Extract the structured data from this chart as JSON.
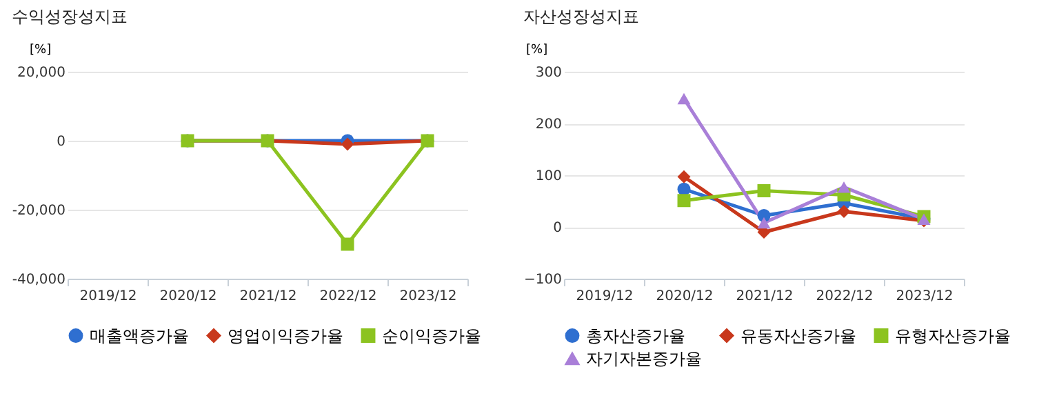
{
  "chart_data": [
    {
      "type": "line",
      "title": "수익성장성지표",
      "ylabel": "[%]",
      "categories": [
        "2019/12",
        "2020/12",
        "2021/12",
        "2022/12",
        "2023/12"
      ],
      "ylim": [
        -40000,
        20000
      ],
      "yticks": [
        {
          "value": -40000,
          "label": "-40,000"
        },
        {
          "value": -20000,
          "label": "-20,000"
        },
        0,
        {
          "value": 20000,
          "label": "20,000"
        }
      ],
      "grid": "y",
      "legend": "bottom",
      "series": [
        {
          "name": "매출액증가율",
          "color": "#2f6fd0",
          "marker": "circle",
          "values": [
            null,
            0,
            0,
            0,
            0
          ]
        },
        {
          "name": "영업이익증가율",
          "color": "#c8381c",
          "marker": "diamond",
          "values": [
            null,
            0,
            0,
            -1000,
            0
          ]
        },
        {
          "name": "순이익증가율",
          "color": "#8cc320",
          "marker": "square",
          "values": [
            null,
            0,
            0,
            -30000,
            0
          ]
        }
      ]
    },
    {
      "type": "line",
      "title": "자산성장성지표",
      "ylabel": "[%]",
      "categories": [
        "2019/12",
        "2020/12",
        "2021/12",
        "2022/12",
        "2023/12"
      ],
      "ylim": [
        -100,
        300
      ],
      "yticks": [
        -100,
        0,
        100,
        200,
        300
      ],
      "grid": "y",
      "legend": "bottom",
      "series": [
        {
          "name": "총자산증가율",
          "color": "#2f6fd0",
          "marker": "circle",
          "values": [
            null,
            73,
            22,
            46,
            16
          ]
        },
        {
          "name": "유동자산증가율",
          "color": "#c8381c",
          "marker": "diamond",
          "values": [
            null,
            97,
            -10,
            30,
            12
          ]
        },
        {
          "name": "유형자산증가율",
          "color": "#8cc320",
          "marker": "square",
          "values": [
            null,
            51,
            70,
            62,
            20
          ]
        },
        {
          "name": "자기자본증가율",
          "color": "#a97fd8",
          "marker": "triangle-up",
          "values": [
            null,
            248,
            8,
            77,
            15
          ]
        }
      ]
    }
  ]
}
